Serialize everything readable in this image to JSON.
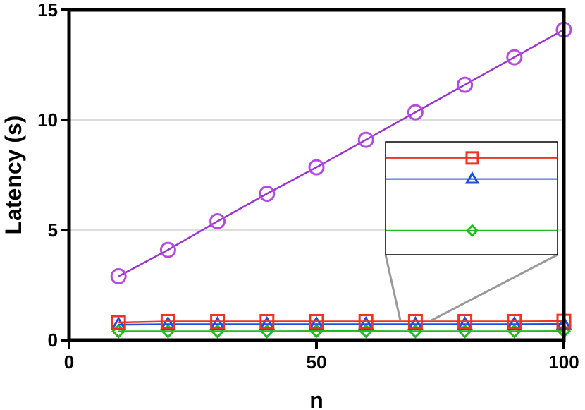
{
  "chart_data": {
    "type": "line",
    "xlabel": "n",
    "ylabel": "Latency (s)",
    "xlim": [
      0,
      100
    ],
    "ylim": [
      0,
      15
    ],
    "xticks": [
      0,
      50,
      100
    ],
    "yticks": [
      0,
      5,
      10,
      15
    ],
    "grid": "horizontal",
    "x": [
      10,
      20,
      30,
      40,
      50,
      60,
      70,
      80,
      90,
      100
    ],
    "series": [
      {
        "marker": "circle",
        "color": "#9933cc",
        "marker_color": "#b44be1",
        "values": [
          2.9,
          4.1,
          5.4,
          6.65,
          7.85,
          9.1,
          10.35,
          11.6,
          12.85,
          14.1
        ]
      },
      {
        "marker": "square",
        "color": "#ee3322",
        "marker_color": "#ee3322",
        "values": [
          0.8,
          0.85,
          0.85,
          0.85,
          0.85,
          0.85,
          0.85,
          0.85,
          0.85,
          0.86
        ]
      },
      {
        "marker": "triangle",
        "color": "#1f4fe0",
        "marker_color": "#1f4fe0",
        "values": [
          0.7,
          0.72,
          0.72,
          0.72,
          0.72,
          0.72,
          0.72,
          0.72,
          0.72,
          0.73
        ]
      },
      {
        "marker": "diamond",
        "color": "#22bb22",
        "marker_color": "#22bb22",
        "values": [
          0.4,
          0.4,
          0.4,
          0.4,
          0.41,
          0.41,
          0.4,
          0.4,
          0.4,
          0.41
        ]
      }
    ],
    "inset": {
      "zoom_of": "lower series near n = 70",
      "marker_x": 70
    }
  }
}
